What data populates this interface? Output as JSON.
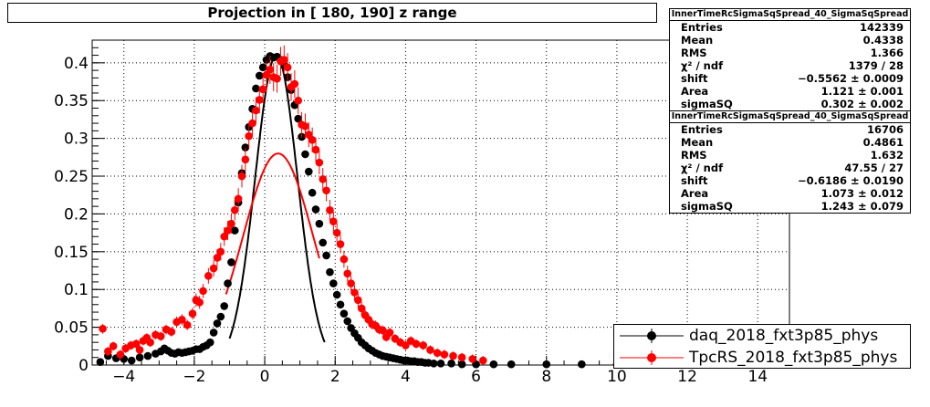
{
  "title": "Projection in [ 180, 190] z range",
  "stats_boxes": [
    {
      "name": "InnerTimeRcSigmaSqSpread_40_SigmaSqSpread",
      "rows": [
        {
          "label": "Entries",
          "value": "142339"
        },
        {
          "label": "Mean",
          "value": "0.4338"
        },
        {
          "label": "RMS",
          "value": "1.366"
        },
        {
          "label": "χ² / ndf",
          "value": "1379 / 28"
        },
        {
          "label": "shift",
          "value": "−0.5562 ± 0.0009"
        },
        {
          "label": "Area",
          "value": "1.121 ± 0.001"
        },
        {
          "label": "sigmaSQ",
          "value": "0.302 ± 0.002"
        }
      ]
    },
    {
      "name": "InnerTimeRcSigmaSqSpread_40_SigmaSqSpread",
      "rows": [
        {
          "label": "Entries",
          "value": "16706"
        },
        {
          "label": "Mean",
          "value": "0.4861"
        },
        {
          "label": "RMS",
          "value": "1.632"
        },
        {
          "label": "χ² / ndf",
          "value": "47.55 / 27"
        },
        {
          "label": "shift",
          "value": "−0.6186 ± 0.0190"
        },
        {
          "label": "Area",
          "value": "1.073 ± 0.012"
        },
        {
          "label": "sigmaSQ",
          "value": "1.243 ± 0.079"
        }
      ]
    }
  ],
  "legend": [
    {
      "label": "daq_2018_fxt3p85_phys",
      "color": "#000000"
    },
    {
      "label": "TpcRS_2018_fxt3p85_phys",
      "color": "#ff0000"
    }
  ],
  "chart_data": {
    "type": "scatter",
    "title": "Projection in [ 180, 190] z range",
    "xlabel": "",
    "ylabel": "",
    "xlim": [
      -4.9,
      14.9
    ],
    "ylim": [
      0,
      0.43
    ],
    "grid": true,
    "legend_position": "bottom-right",
    "x_ticks": [
      {
        "label": "−4",
        "value": -4
      },
      {
        "label": "−2",
        "value": -2
      },
      {
        "label": "0",
        "value": 0
      },
      {
        "label": "2",
        "value": 2
      },
      {
        "label": "4",
        "value": 4
      },
      {
        "label": "6",
        "value": 6
      },
      {
        "label": "8",
        "value": 8
      },
      {
        "label": "10",
        "value": 10
      },
      {
        "label": "12",
        "value": 12
      },
      {
        "label": "14",
        "value": 14
      }
    ],
    "y_ticks": [
      {
        "label": "0",
        "value": 0
      },
      {
        "label": "0.05",
        "value": 0.05
      },
      {
        "label": "0.1",
        "value": 0.1
      },
      {
        "label": "0.15",
        "value": 0.15
      },
      {
        "label": "0.2",
        "value": 0.2
      },
      {
        "label": "0.25",
        "value": 0.25
      },
      {
        "label": "0.3",
        "value": 0.3
      },
      {
        "label": "0.35",
        "value": 0.35
      },
      {
        "label": "0.4",
        "value": 0.4
      }
    ],
    "series": [
      {
        "name": "daq_2018_fxt3p85_phys",
        "color": "#000000",
        "points": [
          [
            -4.67,
            0.004
          ],
          [
            -4.45,
            0.012
          ],
          [
            -4.22,
            0.009
          ],
          [
            -4.0,
            0.008
          ],
          [
            -3.78,
            0.006
          ],
          [
            -3.55,
            0.01
          ],
          [
            -3.32,
            0.012
          ],
          [
            -3.1,
            0.015
          ],
          [
            -2.95,
            0.018
          ],
          [
            -2.85,
            0.022
          ],
          [
            -2.75,
            0.019
          ],
          [
            -2.65,
            0.016
          ],
          [
            -2.55,
            0.015
          ],
          [
            -2.45,
            0.017
          ],
          [
            -2.35,
            0.016
          ],
          [
            -2.25,
            0.017
          ],
          [
            -2.15,
            0.018
          ],
          [
            -2.05,
            0.019
          ],
          [
            -1.95,
            0.021
          ],
          [
            -1.85,
            0.021
          ],
          [
            -1.75,
            0.024
          ],
          [
            -1.65,
            0.026
          ],
          [
            -1.55,
            0.03
          ],
          [
            -1.45,
            0.043
          ],
          [
            -1.35,
            0.055
          ],
          [
            -1.25,
            0.064
          ],
          [
            -1.15,
            0.078
          ],
          [
            -1.05,
            0.108
          ],
          [
            -0.95,
            0.136
          ],
          [
            -0.85,
            0.178
          ],
          [
            -0.75,
            0.215
          ],
          [
            -0.65,
            0.254
          ],
          [
            -0.55,
            0.288
          ],
          [
            -0.45,
            0.315
          ],
          [
            -0.35,
            0.339
          ],
          [
            -0.25,
            0.366
          ],
          [
            -0.15,
            0.383
          ],
          [
            -0.05,
            0.394
          ],
          [
            0.05,
            0.404
          ],
          [
            0.15,
            0.409
          ],
          [
            0.25,
            0.407
          ],
          [
            0.35,
            0.408
          ],
          [
            0.45,
            0.404
          ],
          [
            0.55,
            0.396
          ],
          [
            0.65,
            0.381
          ],
          [
            0.75,
            0.364
          ],
          [
            0.85,
            0.344
          ],
          [
            0.95,
            0.326
          ],
          [
            1.05,
            0.302
          ],
          [
            1.15,
            0.279
          ],
          [
            1.25,
            0.256
          ],
          [
            1.35,
            0.228
          ],
          [
            1.45,
            0.206
          ],
          [
            1.55,
            0.187
          ],
          [
            1.65,
            0.162
          ],
          [
            1.75,
            0.145
          ],
          [
            1.85,
            0.123
          ],
          [
            1.95,
            0.108
          ],
          [
            2.05,
            0.093
          ],
          [
            2.15,
            0.08
          ],
          [
            2.25,
            0.068
          ],
          [
            2.35,
            0.058
          ],
          [
            2.45,
            0.049
          ],
          [
            2.55,
            0.042
          ],
          [
            2.65,
            0.036
          ],
          [
            2.75,
            0.03
          ],
          [
            2.85,
            0.026
          ],
          [
            2.95,
            0.022
          ],
          [
            3.05,
            0.019
          ],
          [
            3.15,
            0.016
          ],
          [
            3.25,
            0.014
          ],
          [
            3.35,
            0.012
          ],
          [
            3.45,
            0.011
          ],
          [
            3.55,
            0.01
          ],
          [
            3.65,
            0.009
          ],
          [
            3.75,
            0.008
          ],
          [
            3.85,
            0.007
          ],
          [
            3.95,
            0.006
          ],
          [
            4.05,
            0.006
          ],
          [
            4.15,
            0.005
          ],
          [
            4.25,
            0.005
          ],
          [
            4.35,
            0.004
          ],
          [
            4.45,
            0.004
          ],
          [
            4.55,
            0.003
          ],
          [
            4.65,
            0.003
          ],
          [
            4.8,
            0.002
          ],
          [
            5.0,
            0.002
          ],
          [
            5.3,
            0.002
          ],
          [
            5.6,
            0.001
          ],
          [
            6.0,
            0.001
          ],
          [
            6.5,
            0.001
          ],
          [
            7.0,
            0.001
          ],
          [
            8.0,
            0.001
          ],
          [
            9.0,
            0.001
          ],
          [
            10.0,
            0.001
          ],
          [
            11.0,
            0.001
          ]
        ]
      },
      {
        "name": "TpcRS_2018_fxt3p85_phys",
        "color": "#ff0000",
        "points": [
          [
            -4.6,
            0.048
          ],
          [
            -4.45,
            0.018
          ],
          [
            -4.3,
            0.025
          ],
          [
            -4.1,
            0.014
          ],
          [
            -3.95,
            0.022
          ],
          [
            -3.8,
            0.026
          ],
          [
            -3.65,
            0.028
          ],
          [
            -3.55,
            0.02
          ],
          [
            -3.45,
            0.032
          ],
          [
            -3.35,
            0.036
          ],
          [
            -3.25,
            0.03
          ],
          [
            -3.1,
            0.04
          ],
          [
            -2.95,
            0.038
          ],
          [
            -2.8,
            0.047
          ],
          [
            -2.65,
            0.044
          ],
          [
            -2.5,
            0.057
          ],
          [
            -2.35,
            0.06
          ],
          [
            -2.2,
            0.053
          ],
          [
            -2.05,
            0.068
          ],
          [
            -1.95,
            0.086
          ],
          [
            -1.85,
            0.083
          ],
          [
            -1.75,
            0.098
          ],
          [
            -1.6,
            0.118
          ],
          [
            -1.45,
            0.128
          ],
          [
            -1.35,
            0.142
          ],
          [
            -1.25,
            0.15
          ],
          [
            -1.15,
            0.17
          ],
          [
            -1.05,
            0.178
          ],
          [
            -0.95,
            0.187
          ],
          [
            -0.85,
            0.205
          ],
          [
            -0.75,
            0.22
          ],
          [
            -0.65,
            0.25
          ],
          [
            -0.55,
            0.272
          ],
          [
            -0.45,
            0.303
          ],
          [
            -0.35,
            0.32
          ],
          [
            -0.25,
            0.337
          ],
          [
            -0.15,
            0.351
          ],
          [
            -0.05,
            0.365
          ],
          [
            0.05,
            0.384
          ],
          [
            0.15,
            0.391
          ],
          [
            0.25,
            0.381
          ],
          [
            0.35,
            0.379
          ],
          [
            0.45,
            0.402
          ],
          [
            0.55,
            0.404
          ],
          [
            0.65,
            0.394
          ],
          [
            0.75,
            0.368
          ],
          [
            0.85,
            0.372
          ],
          [
            0.95,
            0.35
          ],
          [
            1.05,
            0.318
          ],
          [
            1.15,
            0.316
          ],
          [
            1.25,
            0.305
          ],
          [
            1.35,
            0.298
          ],
          [
            1.45,
            0.285
          ],
          [
            1.55,
            0.268
          ],
          [
            1.65,
            0.246
          ],
          [
            1.75,
            0.231
          ],
          [
            1.85,
            0.205
          ],
          [
            1.95,
            0.19
          ],
          [
            2.05,
            0.175
          ],
          [
            2.15,
            0.16
          ],
          [
            2.25,
            0.14
          ],
          [
            2.35,
            0.121
          ],
          [
            2.45,
            0.108
          ],
          [
            2.55,
            0.096
          ],
          [
            2.65,
            0.086
          ],
          [
            2.75,
            0.075
          ],
          [
            2.85,
            0.066
          ],
          [
            2.95,
            0.06
          ],
          [
            3.05,
            0.054
          ],
          [
            3.15,
            0.052
          ],
          [
            3.25,
            0.047
          ],
          [
            3.35,
            0.046
          ],
          [
            3.45,
            0.037
          ],
          [
            3.55,
            0.043
          ],
          [
            3.7,
            0.035
          ],
          [
            3.85,
            0.03
          ],
          [
            4.0,
            0.026
          ],
          [
            4.15,
            0.032
          ],
          [
            4.3,
            0.028
          ],
          [
            4.5,
            0.026
          ],
          [
            4.7,
            0.02
          ],
          [
            4.9,
            0.016
          ],
          [
            5.1,
            0.014
          ],
          [
            5.35,
            0.012
          ],
          [
            5.6,
            0.01
          ],
          [
            5.9,
            0.008
          ],
          [
            6.2,
            0.006
          ]
        ]
      }
    ],
    "fits": [
      {
        "series": "daq_2018_fxt3p85_phys",
        "color": "#000000",
        "x_range": [
          -1.0,
          1.7
        ]
      },
      {
        "series": "TpcRS_2018_fxt3p85_phys",
        "color": "#ff0000",
        "x_range": [
          -1.1,
          1.55
        ]
      }
    ]
  }
}
